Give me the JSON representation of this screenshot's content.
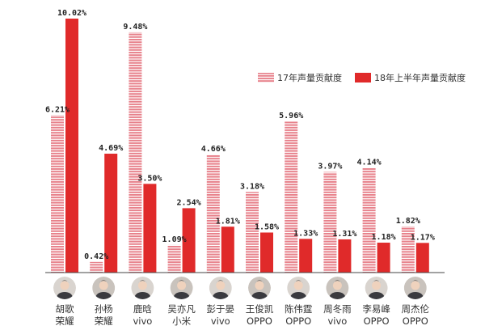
{
  "chart_data": {
    "type": "bar",
    "title": "",
    "xlabel": "",
    "ylabel": "",
    "ylim": [
      0,
      10.02
    ],
    "grid": false,
    "legend_position": "top-right",
    "categories": [
      {
        "name": "胡歌",
        "brand": "荣耀"
      },
      {
        "name": "孙杨",
        "brand": "荣耀"
      },
      {
        "name": "鹿晗",
        "brand": "vivo"
      },
      {
        "name": "吴亦凡",
        "brand": "小米"
      },
      {
        "name": "彭于晏",
        "brand": "vivo"
      },
      {
        "name": "王俊凯",
        "brand": "OPPO"
      },
      {
        "name": "陈伟霆",
        "brand": "OPPO"
      },
      {
        "name": "周冬雨",
        "brand": "vivo"
      },
      {
        "name": "李易峰",
        "brand": "OPPO"
      },
      {
        "name": "周杰伦",
        "brand": "OPPO"
      }
    ],
    "series": [
      {
        "name": "17年声量贡献度",
        "values": [
          6.21,
          0.42,
          9.48,
          1.09,
          4.66,
          3.18,
          5.96,
          3.97,
          4.14,
          1.82
        ],
        "labels": [
          "6.21%",
          "0.42%",
          "9.48%",
          "1.09%",
          "4.66%",
          "3.18%",
          "5.96%",
          "3.97%",
          "4.14%",
          "1.82%"
        ],
        "color": "#e7808a",
        "style": "striped"
      },
      {
        "name": "18年上半年声量贡献度",
        "values": [
          10.02,
          4.69,
          3.5,
          2.54,
          1.81,
          1.58,
          1.33,
          1.31,
          1.18,
          1.17
        ],
        "labels": [
          "10.02%",
          "4.69%",
          "3.50%",
          "2.54%",
          "1.81%",
          "1.58%",
          "1.33%",
          "1.31%",
          "1.18%",
          "1.17%"
        ],
        "color": "#e02a2a",
        "style": "solid"
      }
    ]
  }
}
